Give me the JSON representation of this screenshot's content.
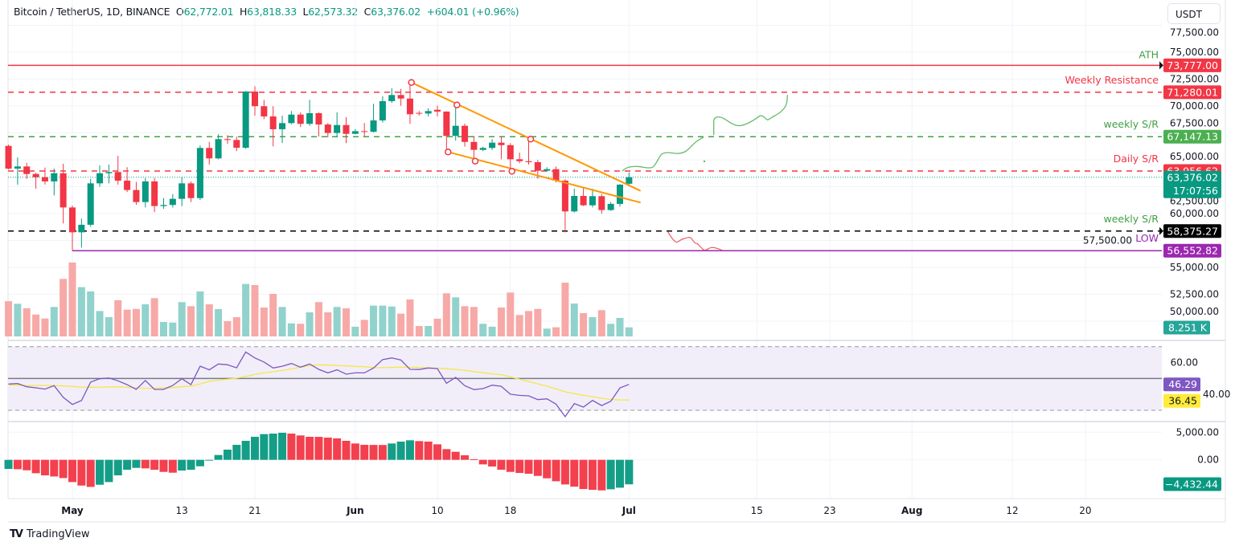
{
  "header": {
    "symbol": "Bitcoin / TetherUS, 1D, BINANCE",
    "open_label": "O",
    "open": "62,772.01",
    "high_label": "H",
    "high": "63,818.33",
    "low_label": "L",
    "low": "62,573.32",
    "close_label": "C",
    "close": "63,376.02",
    "change": "+604.01 (+0.96%)"
  },
  "currency_button": "USDT",
  "logo": {
    "mark": "TV",
    "text": "TradingView"
  },
  "colors": {
    "up": "#089981",
    "down": "#f23645",
    "vol_up": "#92d2cc",
    "vol_down": "#f7a9a7",
    "rsi": "#7e57c2",
    "rsi_ma": "#f7e64a",
    "trendline": "#ff9800",
    "projection_up": "#66bb6a",
    "projection_down": "#f05a6a"
  },
  "chart_data": {
    "type": "candlestick",
    "title": "Bitcoin / TetherUS, 1D, BINANCE",
    "dates": [
      "Apr 24",
      "Apr 25",
      "Apr 26",
      "Apr 27",
      "Apr 28",
      "Apr 29",
      "Apr 30",
      "May 1",
      "May 2",
      "May 3",
      "May 4",
      "May 5",
      "May 6",
      "May 7",
      "May 8",
      "May 9",
      "May 10",
      "May 11",
      "May 12",
      "May 13",
      "May 14",
      "May 15",
      "May 16",
      "May 17",
      "May 18",
      "May 19",
      "May 20",
      "May 21",
      "May 22",
      "May 23",
      "May 24",
      "May 25",
      "May 26",
      "May 27",
      "May 28",
      "May 29",
      "May 30",
      "May 31",
      "Jun 1",
      "Jun 2",
      "Jun 3",
      "Jun 4",
      "Jun 5",
      "Jun 6",
      "Jun 7",
      "Jun 8",
      "Jun 9",
      "Jun 10",
      "Jun 11",
      "Jun 12",
      "Jun 13",
      "Jun 14",
      "Jun 15",
      "Jun 16",
      "Jun 17",
      "Jun 18",
      "Jun 19",
      "Jun 20",
      "Jun 21",
      "Jun 22",
      "Jun 23",
      "Jun 24",
      "Jun 25",
      "Jun 26",
      "Jun 27",
      "Jun 28",
      "Jun 29",
      "Jun 30",
      "Jul 1"
    ],
    "ohlc": [
      [
        66290,
        66400,
        64100,
        64180
      ],
      [
        64180,
        65220,
        62690,
        64380
      ],
      [
        64380,
        64720,
        63230,
        63680
      ],
      [
        63680,
        63810,
        62310,
        63380
      ],
      [
        63380,
        64280,
        62690,
        62990
      ],
      [
        62990,
        64180,
        61690,
        63750
      ],
      [
        63750,
        64630,
        59080,
        60570
      ],
      [
        60570,
        60750,
        56550,
        58260
      ],
      [
        58260,
        59530,
        56840,
        58960
      ],
      [
        58960,
        63230,
        58760,
        62810
      ],
      [
        62810,
        64480,
        62490,
        63750
      ],
      [
        63750,
        64550,
        62810,
        63860
      ],
      [
        63860,
        65370,
        62690,
        63060
      ],
      [
        63060,
        64310,
        62000,
        62190
      ],
      [
        62190,
        62940,
        60820,
        61070
      ],
      [
        61070,
        63310,
        60570,
        62990
      ],
      [
        62990,
        63310,
        60130,
        60700
      ],
      [
        60700,
        61440,
        60450,
        60800
      ],
      [
        60800,
        61810,
        60570,
        61370
      ],
      [
        61370,
        63380,
        60700,
        62810
      ],
      [
        62810,
        62990,
        61070,
        61440
      ],
      [
        61440,
        66340,
        61250,
        66100
      ],
      [
        66100,
        66660,
        64550,
        65130
      ],
      [
        65130,
        67370,
        65050,
        66920
      ],
      [
        66920,
        67290,
        66470,
        66840
      ],
      [
        66840,
        67160,
        65800,
        66120
      ],
      [
        66120,
        71400,
        66020,
        71340
      ],
      [
        71340,
        71840,
        69100,
        69980
      ],
      [
        69980,
        70570,
        68780,
        69030
      ],
      [
        69030,
        69980,
        66250,
        67840
      ],
      [
        67840,
        69100,
        66550,
        68410
      ],
      [
        68410,
        69530,
        68300,
        69200
      ],
      [
        69200,
        69400,
        68040,
        68340
      ],
      [
        68340,
        70570,
        68160,
        69330
      ],
      [
        69330,
        69400,
        67160,
        68280
      ],
      [
        68280,
        68410,
        67090,
        67490
      ],
      [
        67490,
        69400,
        67090,
        68230
      ],
      [
        68230,
        68955,
        66545,
        67410
      ],
      [
        67410,
        67840,
        67370,
        67660
      ],
      [
        67660,
        68410,
        67160,
        67600
      ],
      [
        67600,
        70200,
        67540,
        68660
      ],
      [
        68660,
        70900,
        68460,
        70450
      ],
      [
        70450,
        71640,
        70280,
        71020
      ],
      [
        71020,
        71590,
        70020,
        70690
      ],
      [
        70690,
        72190,
        68340,
        69230
      ],
      [
        69360,
        69530,
        69100,
        69300
      ],
      [
        69300,
        69780,
        69030,
        69530
      ],
      [
        69650,
        70030,
        69030,
        69480
      ],
      [
        69480,
        69500,
        65720,
        67220
      ],
      [
        67220,
        70100,
        66790,
        68160
      ],
      [
        68160,
        68360,
        66220,
        66660
      ],
      [
        66660,
        67220,
        64930,
        65920
      ],
      [
        65920,
        66220,
        65800,
        66100
      ],
      [
        66100,
        66920,
        65920,
        66590
      ],
      [
        66590,
        67160,
        65050,
        66360
      ],
      [
        66360,
        66540,
        63930,
        65050
      ],
      [
        65050,
        65670,
        64680,
        64870
      ],
      [
        64870,
        66960,
        64550,
        64780
      ],
      [
        64780,
        64980,
        63230,
        63980
      ],
      [
        63980,
        64310,
        63880,
        64130
      ],
      [
        64130,
        64380,
        62900,
        63060
      ],
      [
        63060,
        63190,
        58260,
        60200
      ],
      [
        60200,
        62310,
        60100,
        61640
      ],
      [
        61640,
        62440,
        60700,
        60770
      ],
      [
        60770,
        62310,
        60570,
        61620
      ],
      [
        61620,
        61810,
        60000,
        60330
      ],
      [
        60330,
        61070,
        60250,
        60900
      ],
      [
        60900,
        62740,
        60650,
        62690
      ],
      [
        62772.01,
        63818.33,
        62573.32,
        63376.02
      ]
    ],
    "volume_k": [
      32,
      29.7,
      25.6,
      19.9,
      16.3,
      26.8,
      52.3,
      67.2,
      44.8,
      40.9,
      23.1,
      17.5,
      32.9,
      24.3,
      25,
      29.2,
      34.8,
      13.1,
      12.6,
      31.2,
      27.5,
      40.9,
      29.2,
      24.8,
      13.9,
      17.5,
      47.7,
      46.7,
      26.3,
      38.7,
      26.8,
      11.9,
      11.5,
      21.9,
      31.2,
      21.9,
      26.8,
      25.6,
      8.8,
      15.1,
      28,
      28,
      27.2,
      20.7,
      33.6,
      9.5,
      9.5,
      16.1,
      39.2,
      35.5,
      27.5,
      26.8,
      11.5,
      8.8,
      26.3,
      39.9,
      19.5,
      23.1,
      25,
      7.1,
      8.3,
      48.9,
      29.9,
      21.2,
      17.5,
      23.9,
      11.5,
      16.8,
      8.251
    ],
    "rsi": [
      46.5,
      46.8,
      44.8,
      44.1,
      43.3,
      45.5,
      38.1,
      33.7,
      36.1,
      47.7,
      49.8,
      50.3,
      48.5,
      46.1,
      43.1,
      48.7,
      43.1,
      43.1,
      45.6,
      49.8,
      46.1,
      57.7,
      55.4,
      59.1,
      58.6,
      56.7,
      66.6,
      62.9,
      60.3,
      56.6,
      57.7,
      59.4,
      57.1,
      59.1,
      55.7,
      53.5,
      55.4,
      52.7,
      53.5,
      53.5,
      56.6,
      61.9,
      62.9,
      61.6,
      55.7,
      55.6,
      56.6,
      56.2,
      47.0,
      50.7,
      45.5,
      43.0,
      43.6,
      45.8,
      45.1,
      40.1,
      39.4,
      39.1,
      36.7,
      37.2,
      33.9,
      26.0,
      34.2,
      32.0,
      36.2,
      33.0,
      35.7,
      44.0,
      46.29
    ],
    "rsi_ma": [
      46.0,
      45.8,
      45.6,
      45.6,
      45.6,
      45.6,
      45.3,
      45.0,
      44.6,
      44.5,
      44.6,
      44.7,
      44.8,
      44.5,
      44.1,
      43.8,
      43.9,
      44.0,
      44.3,
      44.8,
      45.2,
      46.5,
      48.2,
      48.9,
      49.5,
      50.2,
      51.3,
      52.5,
      53.5,
      54.2,
      55.0,
      56.0,
      57.1,
      58.0,
      58.6,
      58.4,
      58.2,
      57.9,
      57.6,
      57.4,
      56.8,
      56.8,
      57.0,
      57.1,
      57.0,
      56.9,
      56.7,
      56.5,
      56.1,
      55.7,
      55.0,
      54.3,
      53.6,
      52.9,
      52.4,
      51.0,
      49.5,
      48.0,
      46.6,
      45.2,
      43.4,
      41.6,
      40.5,
      39.4,
      38.5,
      37.6,
      36.8,
      36.5,
      36.45
    ],
    "macd_hist": [
      -1650,
      -1700,
      -1890,
      -2425,
      -2810,
      -3010,
      -3300,
      -4025,
      -4656,
      -4900,
      -4510,
      -4025,
      -2810,
      -1795,
      -1455,
      -1550,
      -1795,
      -2180,
      -2330,
      -1940,
      -1795,
      -1165,
      -100,
      875,
      1845,
      2715,
      3445,
      4170,
      4655,
      4750,
      4900,
      4750,
      4415,
      4170,
      4160,
      4025,
      3880,
      3445,
      2960,
      2715,
      2700,
      2690,
      2960,
      3300,
      3540,
      3395,
      3300,
      2810,
      1940,
      1455,
      825,
      100,
      -825,
      -1210,
      -1795,
      -2180,
      -2375,
      -2520,
      -2910,
      -3345,
      -3880,
      -4460,
      -4850,
      -5285,
      -5430,
      -5530,
      -5335,
      -5045,
      -4432.44
    ],
    "x_ticks": [
      {
        "label": "May",
        "bold": true
      },
      {
        "label": "13",
        "bold": false
      },
      {
        "label": "21",
        "bold": false
      },
      {
        "label": "Jun",
        "bold": true
      },
      {
        "label": "10",
        "bold": false
      },
      {
        "label": "18",
        "bold": false
      },
      {
        "label": "Jul",
        "bold": true
      },
      {
        "label": "15",
        "bold": false
      },
      {
        "label": "23",
        "bold": false
      },
      {
        "label": "Aug",
        "bold": true
      },
      {
        "label": "12",
        "bold": false
      },
      {
        "label": "20",
        "bold": false
      }
    ],
    "price_ticks": [
      "77,500.00",
      "75,000.00",
      "72,500.00",
      "70,000.00",
      "67,500.00",
      "65,000.00",
      "62,500.00",
      "60,000.00",
      "57,500.00",
      "55,000.00",
      "52,500.00",
      "50,000.00"
    ],
    "rsi_ticks": [
      "60.00",
      "40.00"
    ],
    "rsi_bands": [
      70,
      50,
      30
    ],
    "macd_ticks": [
      "5,000.00",
      "0.00"
    ],
    "levels": [
      {
        "label": "ATH",
        "price": "73,777.00",
        "color": "#f23645",
        "label_color": "#43a047",
        "style": "solid"
      },
      {
        "label": "Weekly Resistance",
        "price": "71,280.01",
        "color": "#f23645",
        "label_color": "#f23645",
        "style": "dashed"
      },
      {
        "label": "weekly S/R",
        "price": "67,147.13",
        "color": "#43a047",
        "label_color": "#43a047",
        "style": "dashed"
      },
      {
        "label": "Daily S/R",
        "price": "63,956.62",
        "color": "#f23645",
        "label_color": "#f23645",
        "style": "dashed"
      },
      {
        "label": "weekly S/R",
        "price": "58,375.27",
        "color": "#000000",
        "label_color": "#43a047",
        "style": "dashed"
      },
      {
        "label": "LOW",
        "price": "56,552.82",
        "color": "#9c27b0",
        "label_color": "#9c27b0",
        "style": "solid"
      }
    ],
    "last_price": {
      "price": "63,376.02",
      "countdown": "17:07:56",
      "color": "#089981"
    },
    "last_volume": {
      "value": "8.251 K",
      "color": "#26a69a"
    },
    "last_rsi": {
      "value": "46.29",
      "color": "#7e57c2"
    },
    "last_rsi_ma": {
      "value": "36.45",
      "color": "#ffeb3b"
    },
    "last_macd": {
      "value": "−4,432.44",
      "color": "#089981"
    }
  }
}
